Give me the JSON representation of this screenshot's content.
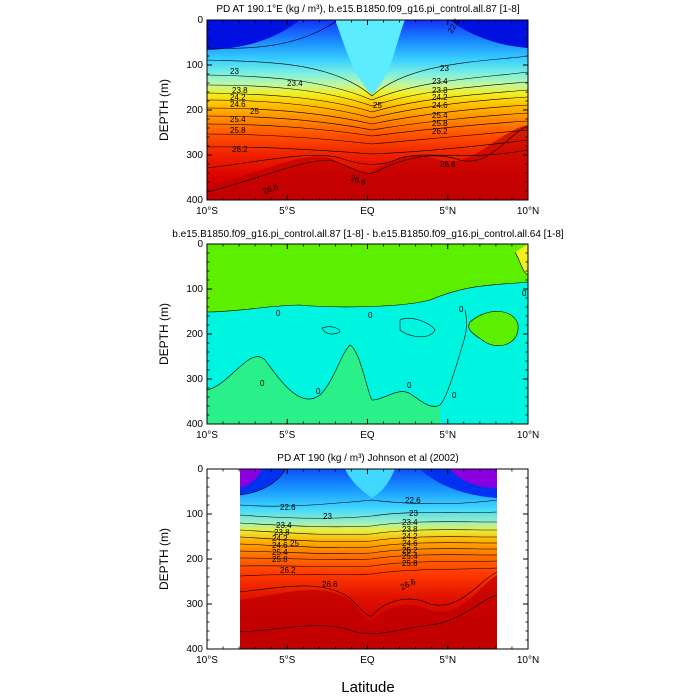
{
  "chart_data": [
    {
      "type": "heatmap",
      "title": "PD AT 190.1°E (kg / m³), b.e15.B1850.f09_g16.pi_control.all.87 [1-8]",
      "ylabel": "DEPTH (m)",
      "xlabel": "",
      "x_tick_labels": [
        "10°S",
        "5°S",
        "EQ",
        "5°N",
        "10°N"
      ],
      "xlim_deg": [
        -10,
        10
      ],
      "y_ticks": [
        0,
        100,
        200,
        300,
        400
      ],
      "ylim": [
        0,
        400
      ],
      "y_inverted": true,
      "contour_labels": [
        "22.6",
        "23",
        "23",
        "23.4",
        "23.4",
        "23.8",
        "23.8",
        "24.2",
        "24.2",
        "24.6",
        "24.6",
        "25",
        "25",
        "25.4",
        "25.4",
        "25.8",
        "25.8",
        "26.2",
        "26.2",
        "26.6",
        "26.6",
        "26.6"
      ],
      "fill_colors": [
        "#0010e0",
        "#0a4cff",
        "#1a8cff",
        "#2fc5ff",
        "#5cecff",
        "#8ef6d8",
        "#c2f7a0",
        "#f2f020",
        "#ffc400",
        "#ff9a00",
        "#ff7000",
        "#ff4800",
        "#f02000",
        "#d80000",
        "#c20000"
      ]
    },
    {
      "type": "heatmap",
      "title": "b.e15.B1850.f09_g16.pi_control.all.87 [1-8] - b.e15.B1850.f09_g16.pi_control.all.64 [1-8]",
      "ylabel": "DEPTH (m)",
      "xlabel": "",
      "x_tick_labels": [
        "10°S",
        "5°S",
        "EQ",
        "5°N",
        "10°N"
      ],
      "xlim_deg": [
        -10,
        10
      ],
      "y_ticks": [
        0,
        100,
        200,
        300,
        400
      ],
      "ylim": [
        0,
        400
      ],
      "y_inverted": true,
      "contour_labels": [
        "0",
        "0",
        "0",
        "0",
        "0",
        "0",
        "0",
        "0"
      ],
      "fill_colors": [
        "#00f5e0",
        "#2af08a",
        "#5cf000",
        "#f2f020"
      ]
    },
    {
      "type": "heatmap",
      "title": "PD AT 190 (kg / m³) Johnson et al (2002)",
      "ylabel": "DEPTH (m)",
      "xlabel": "Latitude",
      "x_tick_labels": [
        "10°S",
        "5°S",
        "EQ",
        "5°N",
        "10°N"
      ],
      "xlim_deg": [
        -10,
        10
      ],
      "data_extent_deg": [
        -8,
        8
      ],
      "y_ticks": [
        0,
        100,
        200,
        300,
        400
      ],
      "ylim": [
        0,
        400
      ],
      "y_inverted": true,
      "contour_labels": [
        "22.6",
        "22.6",
        "23",
        "23",
        "23.4",
        "23.4",
        "23.8",
        "23.8",
        "24.2",
        "24.2",
        "24.6",
        "24.6",
        "25",
        "25",
        "25.4",
        "25.4",
        "25.8",
        "25.8",
        "26.2",
        "26.2",
        "26.6",
        "26.6"
      ],
      "fill_colors": [
        "#8a00e0",
        "#0030f0",
        "#0a60ff",
        "#1a9cff",
        "#40d8ff",
        "#a0f0c0",
        "#d8f060",
        "#ffd000",
        "#ffa000",
        "#ff7000",
        "#ff4000",
        "#e81000",
        "#d00000",
        "#c00000"
      ]
    }
  ]
}
